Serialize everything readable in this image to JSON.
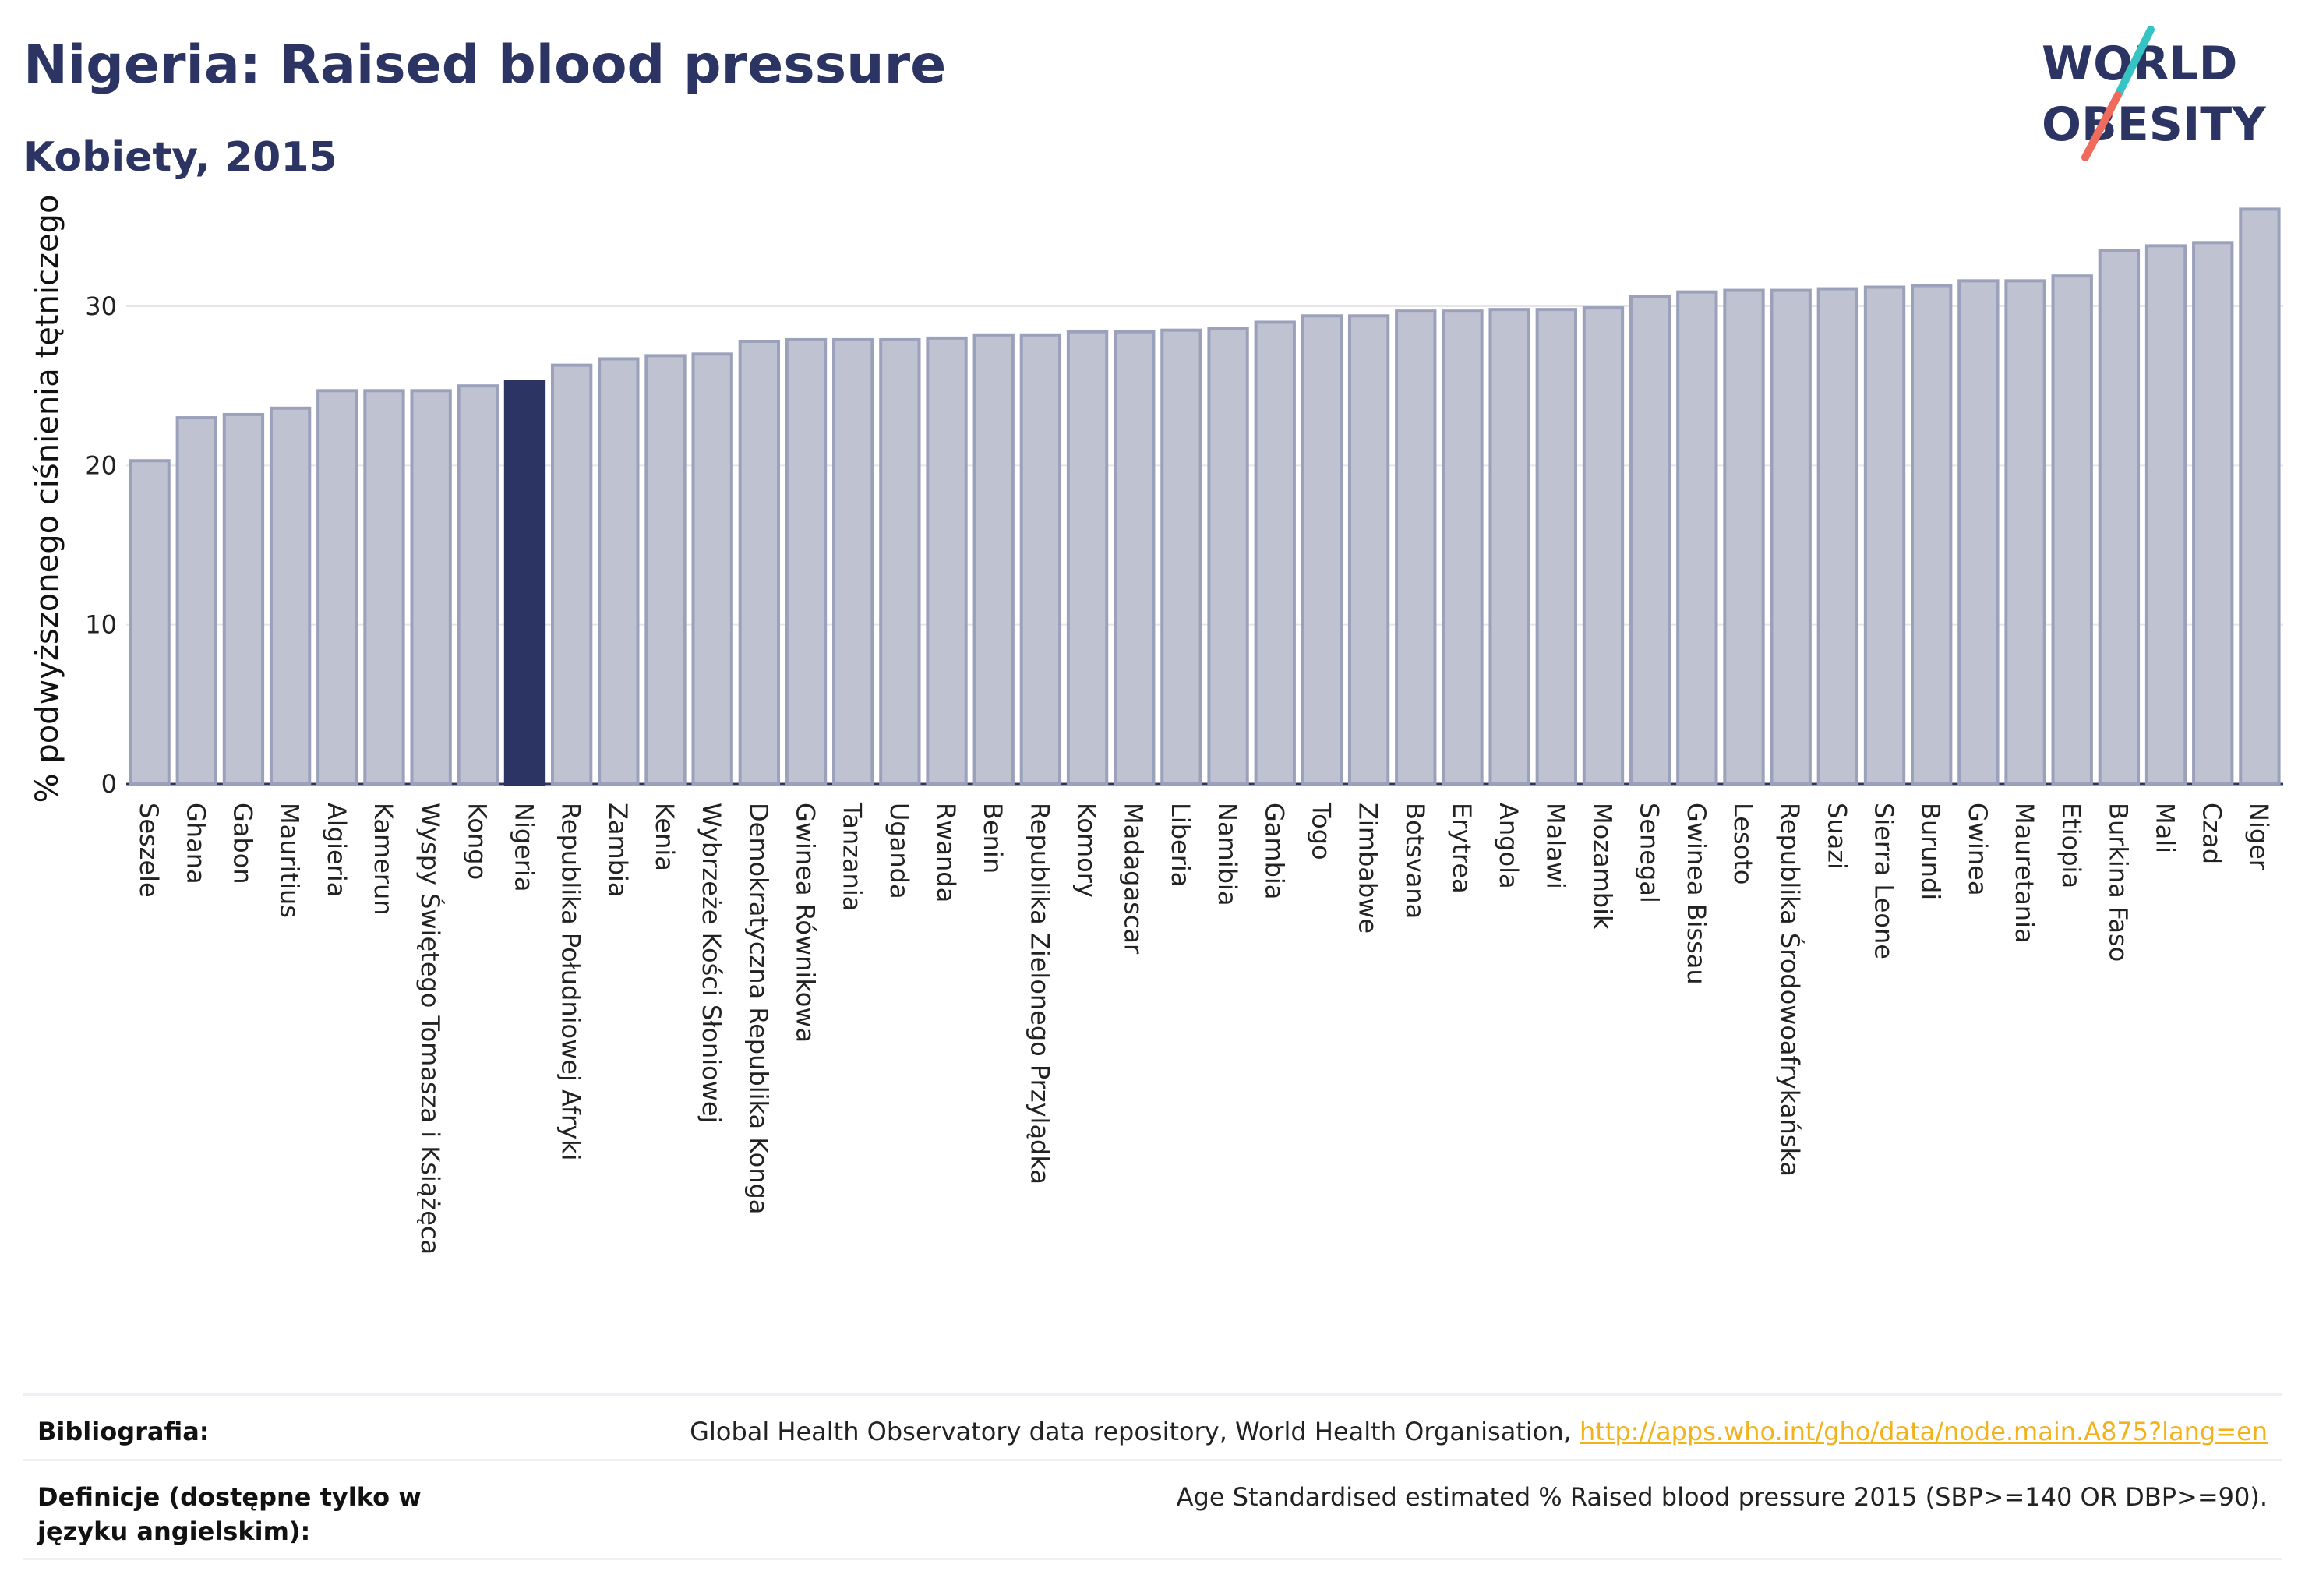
{
  "header": {
    "title": "Nigeria: Raised blood pressure",
    "subtitle": "Kobiety, 2015",
    "logo_line1": "WORLD",
    "logo_line2": "OBESITY"
  },
  "colors": {
    "bar": "#bfc2d0",
    "bar_stroke": "#9ba1ba",
    "highlight": "#2b3462",
    "grid": "#e6e6ea",
    "logo_teal": "#36c3c4",
    "logo_coral": "#ef6b5c"
  },
  "chart_data": {
    "type": "bar",
    "title": "Nigeria: Raised blood pressure",
    "subtitle": "Kobiety, 2015",
    "ylabel": "% podwyższonego ciśnienia tętniczego",
    "xlabel": "",
    "ylim": [
      0,
      37
    ],
    "yticks": [
      0,
      10,
      20,
      30
    ],
    "grid": true,
    "highlight": "Nigeria",
    "categories": [
      "Seszele",
      "Ghana",
      "Gabon",
      "Mauritius",
      "Algieria",
      "Kamerun",
      "Wyspy Świętego Tomasza i Książęca",
      "Kongo",
      "Nigeria",
      "Republika Południowej Afryki",
      "Zambia",
      "Kenia",
      "Wybrzeże Kości Słoniowej",
      "Demokratyczna Republika Konga",
      "Gwinea Równikowa",
      "Tanzania",
      "Uganda",
      "Rwanda",
      "Benin",
      "Republika Zielonego Przylądka",
      "Komory",
      "Madagascar",
      "Liberia",
      "Namibia",
      "Gambia",
      "Togo",
      "Zimbabwe",
      "Botsvana",
      "Erytrea",
      "Angola",
      "Malawi",
      "Mozambik",
      "Senegal",
      "Gwinea Bissau",
      "Lesoto",
      "Republika Środowoafrykańska",
      "Suazi",
      "Sierra Leone",
      "Burundi",
      "Gwinea",
      "Mauretania",
      "Etiopia",
      "Burkina Faso",
      "Mali",
      "Czad",
      "Niger"
    ],
    "values": [
      20.3,
      23.0,
      23.2,
      23.6,
      24.7,
      24.7,
      24.7,
      25.0,
      25.3,
      26.3,
      26.7,
      26.9,
      27.0,
      27.8,
      27.9,
      27.9,
      27.9,
      28.0,
      28.2,
      28.2,
      28.4,
      28.4,
      28.5,
      28.6,
      29.0,
      29.4,
      29.4,
      29.7,
      29.7,
      29.8,
      29.8,
      29.9,
      30.6,
      30.9,
      31.0,
      31.0,
      31.1,
      31.2,
      31.3,
      31.6,
      31.6,
      31.9,
      33.5,
      33.8,
      34.0,
      36.1
    ]
  },
  "footer": {
    "bibliography_label": "Bibliografia:",
    "bibliography_text": "Global Health Observatory data repository, World Health Organisation, ",
    "bibliography_link": "http://apps.who.int/gho/data/node.main.A875?lang=en",
    "definitions_label": "Definicje (dostępne tylko w języku angielskim):",
    "definitions_text": "Age Standardised estimated % Raised blood pressure 2015 (SBP>=140 OR DBP>=90)."
  }
}
